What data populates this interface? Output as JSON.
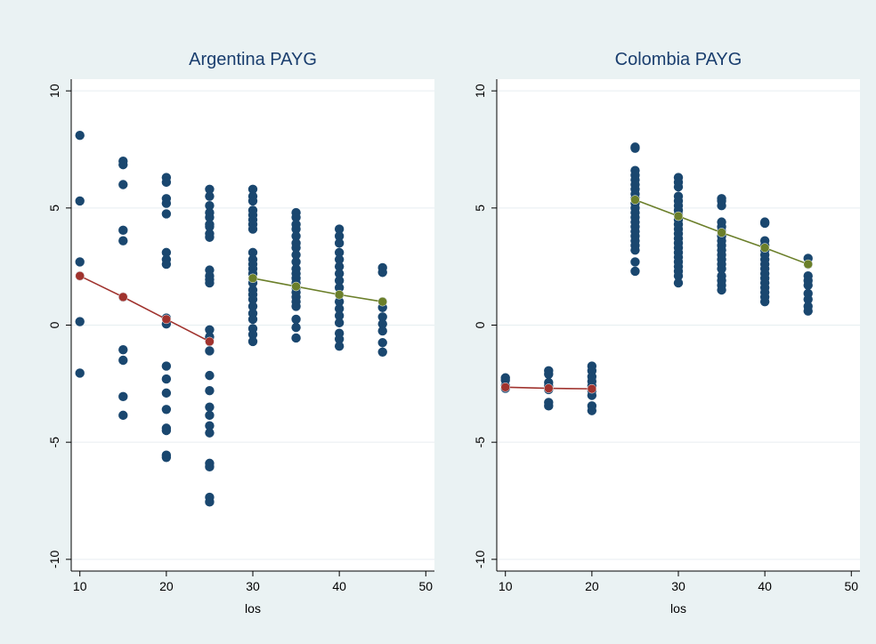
{
  "figure": {
    "background_color": "#eaf2f3",
    "plot_background_color": "#ffffff",
    "grid_color": "#e6eef0",
    "point_color": "#1a476f",
    "title_color": "#1a3e6e"
  },
  "chart_data": [
    {
      "type": "scatter",
      "title": "Argentina PAYG",
      "xlabel": "los",
      "ylabel": "",
      "xlim": [
        9,
        51
      ],
      "ylim": [
        -10.5,
        10.5
      ],
      "xticks": [
        "10",
        "20",
        "30",
        "40",
        "50"
      ],
      "yticks": [
        "-10",
        "-5",
        "0",
        "5",
        "10"
      ],
      "grid": true,
      "points": [
        {
          "x": 10,
          "ys": [
            8.1,
            5.3,
            2.7,
            2.1,
            0.15,
            -2.05
          ]
        },
        {
          "x": 15,
          "ys": [
            7.0,
            6.85,
            6.0,
            4.05,
            3.6,
            1.2,
            -1.05,
            -1.5,
            -3.05,
            -3.85
          ]
        },
        {
          "x": 20,
          "ys": [
            6.3,
            6.1,
            5.4,
            5.2,
            4.75,
            3.1,
            2.8,
            2.6,
            0.3,
            0.05,
            -1.75,
            -2.3,
            -2.9,
            -3.6,
            -4.4,
            -4.5,
            -5.55,
            -5.65
          ]
        },
        {
          "x": 25,
          "ys": [
            5.8,
            5.5,
            5.1,
            4.8,
            4.6,
            4.3,
            4.2,
            3.9,
            3.75,
            2.35,
            2.1,
            1.95,
            1.8,
            -0.2,
            -0.5,
            -0.7,
            -1.1,
            -2.15,
            -2.8,
            -3.5,
            -3.85,
            -4.3,
            -4.6,
            -5.9,
            -6.05,
            -7.35,
            -7.55
          ]
        },
        {
          "x": 30,
          "ys": [
            5.8,
            5.5,
            5.3,
            4.9,
            4.7,
            4.5,
            4.3,
            4.1,
            3.1,
            2.8,
            2.6,
            2.4,
            2.2,
            2.0,
            1.8,
            1.5,
            1.3,
            1.1,
            0.8,
            0.5,
            0.25,
            -0.15,
            -0.4,
            -0.7
          ]
        },
        {
          "x": 35,
          "ys": [
            4.8,
            4.6,
            4.3,
            4.1,
            3.8,
            3.5,
            3.3,
            3.0,
            2.7,
            2.4,
            2.2,
            2.0,
            1.8,
            1.6,
            1.4,
            1.2,
            1.0,
            0.8,
            0.25,
            -0.1,
            -0.55
          ]
        },
        {
          "x": 40,
          "ys": [
            4.1,
            3.8,
            3.5,
            3.1,
            2.8,
            2.5,
            2.2,
            1.9,
            1.6,
            1.3,
            1.0,
            0.7,
            0.4,
            0.1,
            -0.35,
            -0.6,
            -0.9
          ]
        },
        {
          "x": 45,
          "ys": [
            2.45,
            2.25,
            1.0,
            0.75,
            0.35,
            0.05,
            -0.25,
            -0.75,
            -1.15
          ]
        }
      ],
      "fit_lines": [
        {
          "color": "#a0332e",
          "points": [
            [
              10,
              2.1
            ],
            [
              15,
              1.2
            ],
            [
              20,
              0.25
            ],
            [
              25,
              -0.7
            ]
          ]
        },
        {
          "color": "#6b7f2a",
          "points": [
            [
              30,
              2.0
            ],
            [
              35,
              1.65
            ],
            [
              40,
              1.3
            ],
            [
              45,
              1.0
            ]
          ]
        }
      ]
    },
    {
      "type": "scatter",
      "title": "Colombia PAYG",
      "xlabel": "los",
      "ylabel": "",
      "xlim": [
        9,
        51
      ],
      "ylim": [
        -10.5,
        10.5
      ],
      "xticks": [
        "10",
        "20",
        "30",
        "40",
        "50"
      ],
      "yticks": [
        "-10",
        "-5",
        "0",
        "5",
        "10"
      ],
      "grid": true,
      "points": [
        {
          "x": 10,
          "ys": [
            -2.25,
            -2.35,
            -2.6,
            -2.7
          ]
        },
        {
          "x": 15,
          "ys": [
            -1.95,
            -2.1,
            -2.45,
            -2.6,
            -2.75,
            -3.3,
            -3.45
          ]
        },
        {
          "x": 20,
          "ys": [
            -1.75,
            -1.95,
            -2.2,
            -2.4,
            -2.6,
            -2.8,
            -3.0,
            -3.45,
            -3.65
          ]
        },
        {
          "x": 25,
          "ys": [
            7.6,
            7.55,
            6.6,
            6.4,
            6.2,
            6.0,
            5.8,
            5.6,
            5.4,
            5.2,
            5.0,
            4.8,
            4.6,
            4.4,
            4.2,
            4.0,
            3.8,
            3.6,
            3.4,
            3.2,
            2.7,
            2.3
          ]
        },
        {
          "x": 30,
          "ys": [
            6.3,
            6.1,
            5.9,
            5.5,
            5.3,
            5.1,
            4.9,
            4.7,
            4.5,
            4.3,
            4.1,
            3.9,
            3.7,
            3.5,
            3.3,
            3.1,
            2.9,
            2.7,
            2.5,
            2.3,
            2.1,
            1.8
          ]
        },
        {
          "x": 35,
          "ys": [
            5.4,
            5.3,
            5.1,
            4.4,
            4.2,
            4.0,
            3.8,
            3.6,
            3.4,
            3.2,
            3.0,
            2.8,
            2.6,
            2.4,
            2.1,
            1.9,
            1.7,
            1.5
          ]
        },
        {
          "x": 40,
          "ys": [
            4.4,
            4.35,
            3.6,
            3.4,
            3.2,
            3.0,
            2.8,
            2.6,
            2.4,
            2.2,
            2.0,
            1.8,
            1.6,
            1.4,
            1.2,
            1.0
          ]
        },
        {
          "x": 45,
          "ys": [
            2.85,
            2.6,
            2.1,
            1.9,
            1.7,
            1.35,
            1.1,
            0.8,
            0.6
          ]
        }
      ],
      "fit_lines": [
        {
          "color": "#a0332e",
          "points": [
            [
              10,
              -2.65
            ],
            [
              15,
              -2.7
            ],
            [
              20,
              -2.72
            ]
          ]
        },
        {
          "color": "#6b7f2a",
          "points": [
            [
              25,
              5.35
            ],
            [
              30,
              4.65
            ],
            [
              35,
              3.95
            ],
            [
              40,
              3.3
            ],
            [
              45,
              2.6
            ]
          ]
        }
      ]
    }
  ]
}
